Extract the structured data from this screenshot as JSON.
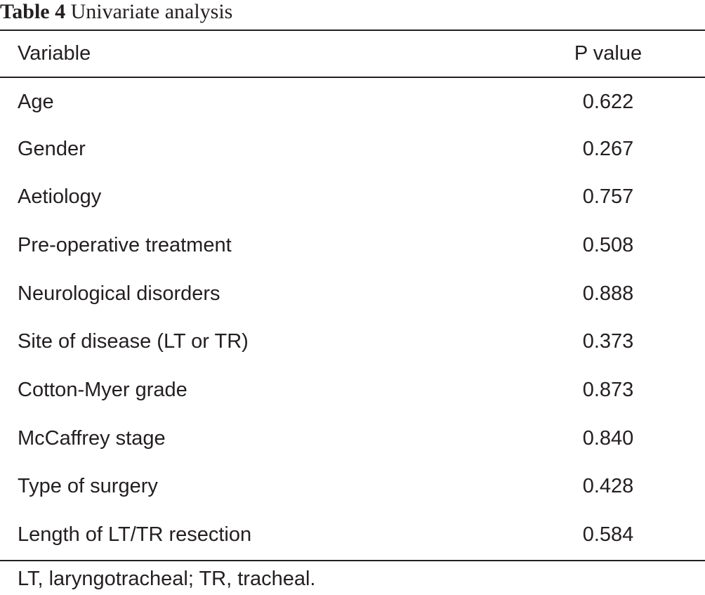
{
  "caption": {
    "label": "Table 4",
    "title": "Univariate analysis"
  },
  "table": {
    "headers": {
      "variable": "Variable",
      "p_value": "P value"
    },
    "rows": [
      {
        "variable": "Age",
        "p_value": "0.622"
      },
      {
        "variable": "Gender",
        "p_value": "0.267"
      },
      {
        "variable": "Aetiology",
        "p_value": "0.757"
      },
      {
        "variable": "Pre-operative treatment",
        "p_value": "0.508"
      },
      {
        "variable": "Neurological disorders",
        "p_value": "0.888"
      },
      {
        "variable": "Site of disease (LT or TR)",
        "p_value": "0.373"
      },
      {
        "variable": "Cotton-Myer grade",
        "p_value": "0.873"
      },
      {
        "variable": "McCaffrey stage",
        "p_value": "0.840"
      },
      {
        "variable": "Type of surgery",
        "p_value": "0.428"
      },
      {
        "variable": "Length of LT/TR resection",
        "p_value": "0.584"
      }
    ]
  },
  "footnote": "LT, laryngotracheal; TR, tracheal."
}
